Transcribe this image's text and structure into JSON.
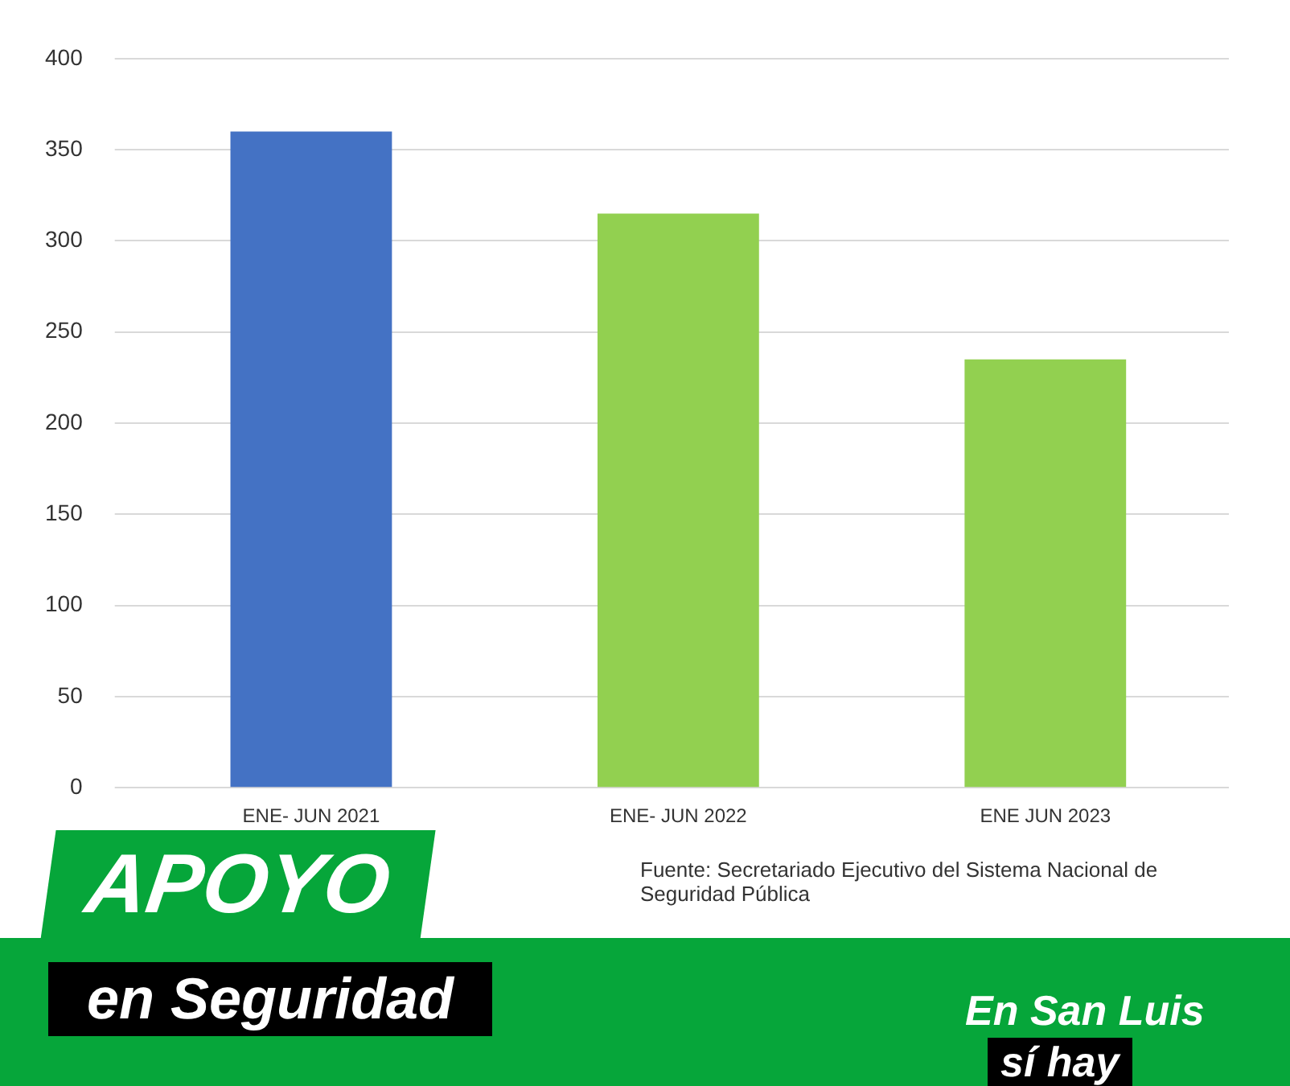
{
  "chart_data": {
    "type": "bar",
    "categories": [
      "ENE- JUN 2021",
      "ENE- JUN 2022",
      "ENE JUN 2023"
    ],
    "values": [
      360,
      315,
      235
    ],
    "colors": [
      "#4472c4",
      "#92d050",
      "#92d050"
    ],
    "ylim": [
      0,
      400
    ],
    "yticks": [
      0,
      50,
      100,
      150,
      200,
      250,
      300,
      350,
      400
    ],
    "grid": "y",
    "legend": false,
    "annotations": [
      "Fuente: Secretariado Ejecutivo del Sistema Nacional de Seguridad Pública",
      "APOYO",
      "en Seguridad",
      "En San Luis",
      "sí hay"
    ]
  }
}
